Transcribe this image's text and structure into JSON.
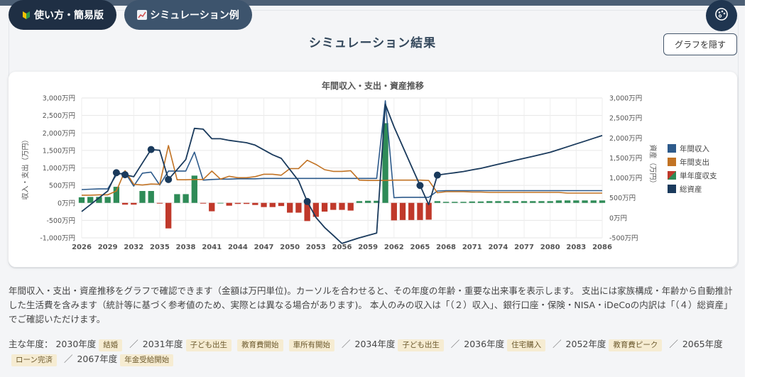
{
  "toolbar": {
    "guide_label": "使い方・簡易版",
    "example_label": "シミュレーション例"
  },
  "section": {
    "title": "シミュレーション結果",
    "hide_button": "グラフを隠す"
  },
  "chart_data": {
    "type": "bar",
    "title": "年間収入・支出・資産推移",
    "ylabel": "収入・支出（万円）",
    "y2label": "資産（万円）",
    "ylim": [
      -1000,
      3000
    ],
    "y2lim": [
      -500,
      3000
    ],
    "yticks": [
      "3,000万円",
      "2,500万円",
      "2,000万円",
      "1,500万円",
      "1,000万円",
      "500万円",
      "0万円",
      "-500万円",
      "-1,000万円"
    ],
    "y2ticks": [
      "3,000万円",
      "2,500万円",
      "2,000万円",
      "1,500万円",
      "1,000万円",
      "500万円",
      "0万円",
      "-500万円"
    ],
    "xticks": [
      "2026",
      "2029",
      "2032",
      "2035",
      "2038",
      "2041",
      "2044",
      "2047",
      "2050",
      "2053",
      "2056",
      "2059",
      "2062",
      "2065",
      "2068",
      "2071",
      "2074",
      "2077",
      "2080",
      "2083",
      "2086"
    ],
    "legend": [
      "年間収入",
      "年間支出",
      "単年度収支",
      "総資産"
    ],
    "legend_position": "right",
    "grid": true,
    "colors": {
      "income": "#2d5a8b",
      "expense": "#c27324",
      "balance_pos": "#2e8b57",
      "balance_neg": "#c0392b",
      "assets": "#1a3a5c"
    },
    "years": [
      2026,
      2027,
      2028,
      2029,
      2030,
      2031,
      2032,
      2033,
      2034,
      2035,
      2036,
      2037,
      2038,
      2039,
      2040,
      2041,
      2042,
      2043,
      2044,
      2045,
      2046,
      2047,
      2048,
      2049,
      2050,
      2051,
      2052,
      2053,
      2054,
      2055,
      2056,
      2057,
      2058,
      2059,
      2060,
      2061,
      2062,
      2063,
      2064,
      2065,
      2066,
      2067,
      2068,
      2069,
      2070,
      2071,
      2072,
      2073,
      2074,
      2075,
      2076,
      2077,
      2078,
      2079,
      2080,
      2081,
      2082,
      2083,
      2084,
      2085,
      2086
    ],
    "income": [
      380,
      390,
      400,
      400,
      800,
      870,
      480,
      850,
      880,
      510,
      910,
      910,
      910,
      1450,
      650,
      670,
      680,
      680,
      690,
      690,
      690,
      700,
      700,
      700,
      700,
      700,
      700,
      700,
      700,
      700,
      700,
      700,
      700,
      700,
      700,
      2920,
      150,
      160,
      160,
      160,
      160,
      340,
      350,
      350,
      350,
      350,
      350,
      350,
      350,
      350,
      350,
      350,
      350,
      350,
      350,
      350,
      350,
      350,
      350,
      350,
      350
    ],
    "expense": [
      220,
      220,
      230,
      230,
      340,
      920,
      530,
      510,
      540,
      530,
      1640,
      660,
      660,
      670,
      670,
      910,
      680,
      760,
      720,
      720,
      750,
      820,
      820,
      790,
      980,
      980,
      1220,
      1100,
      950,
      900,
      900,
      920,
      650,
      640,
      640,
      640,
      650,
      650,
      650,
      650,
      640,
      290,
      320,
      320,
      320,
      310,
      310,
      300,
      300,
      300,
      300,
      300,
      300,
      300,
      300,
      300,
      280,
      280,
      280,
      280,
      280
    ],
    "balance": [
      160,
      170,
      170,
      170,
      460,
      -50,
      -50,
      340,
      340,
      -20,
      -730,
      250,
      250,
      780,
      -20,
      -240,
      0,
      -80,
      -30,
      -30,
      -60,
      -120,
      -120,
      -90,
      -280,
      -280,
      -520,
      -400,
      -250,
      -200,
      -200,
      -220,
      50,
      60,
      60,
      2280,
      -500,
      -490,
      -490,
      -490,
      -480,
      50,
      30,
      30,
      30,
      40,
      40,
      50,
      50,
      50,
      50,
      50,
      50,
      50,
      50,
      70,
      70,
      70,
      70,
      70,
      70
    ],
    "assets": [
      160,
      330,
      500,
      670,
      1130,
      1080,
      1030,
      1370,
      1710,
      1690,
      960,
      1210,
      1460,
      2240,
      2220,
      1980,
      1980,
      1940,
      1910,
      1880,
      1820,
      1700,
      1580,
      1490,
      1210,
      930,
      410,
      10,
      -240,
      -440,
      -640,
      -570,
      -500,
      -440,
      -380,
      2840,
      2280,
      1790,
      1300,
      810,
      330,
      1070,
      1100,
      1130,
      1160,
      1200,
      1240,
      1290,
      1340,
      1390,
      1440,
      1490,
      1540,
      1590,
      1640,
      1710,
      1780,
      1850,
      1920,
      1990,
      2060
    ],
    "markers": [
      2030,
      2031,
      2034,
      2036,
      2052,
      2065,
      2067
    ]
  },
  "description": "年間収入・支出・資産推移をグラフで確認できます（金額は万円単位)。カーソルを合わせると、その年度の年齢・重要な出来事を表示します。 支出には家族構成・年齢から自動推計した生活費を含みます（統計等に基づく参考値のため、実際とは異なる場合があります)。 本人のみの収入は「（２）収入」、銀行口座・保険・NISA・iDeCoの内訳は「（４）総資産」でご確認いただけます。",
  "key_years": {
    "label": "主な年度：",
    "entries": [
      {
        "year": "2030年度",
        "tags": [
          "結婚"
        ]
      },
      {
        "year": "2031年度",
        "tags": [
          "子ども出生",
          "教育費開始",
          "車所有開始"
        ]
      },
      {
        "year": "2034年度",
        "tags": [
          "子ども出生"
        ]
      },
      {
        "year": "2036年度",
        "tags": [
          "住宅購入"
        ]
      },
      {
        "year": "2052年度",
        "tags": [
          "教育費ピーク"
        ]
      },
      {
        "year": "2065年度",
        "tags": [
          "ローン完済"
        ]
      },
      {
        "year": "2067年度",
        "tags": [
          "年金受給開始"
        ]
      }
    ],
    "separator": "／"
  }
}
